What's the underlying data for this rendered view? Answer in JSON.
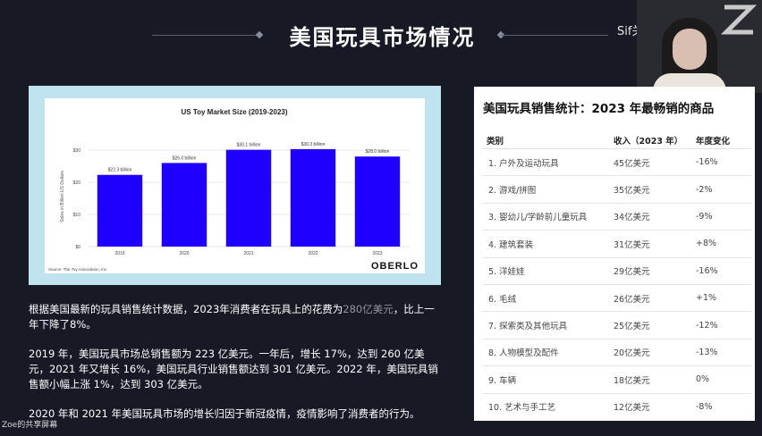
{
  "header": {
    "title": "美国玩具市场情况",
    "overlay_text": "Sif关键词模型"
  },
  "chart_data": {
    "type": "bar",
    "title": "US Toy Market Size (2019-2023)",
    "categories": [
      "2019",
      "2020",
      "2021",
      "2022",
      "2023"
    ],
    "values": [
      22.3,
      26.0,
      30.1,
      30.3,
      28.0
    ],
    "data_labels": [
      "$22.3 billion",
      "$26.0 billion",
      "$30.1 billion",
      "$30.3 billion",
      "$28.0 billion"
    ],
    "ylabel": "Sales in Billion US Dollars",
    "xlabel": "",
    "yticks": [
      "$0",
      "$10",
      "$20",
      "$30"
    ],
    "ylim": [
      0,
      30
    ],
    "bar_color": "#1f00ff",
    "grid": true,
    "source": "Source: The Toy Association, Inc.",
    "brand": "OBERLO"
  },
  "description": {
    "p1_prefix": "根据美国最新的玩具销售统计数据，2023年消费者在玩具上的花费为",
    "p1_highlight": "280亿美元",
    "p1_suffix": "，比上一年下降了8%。",
    "p2": "2019 年，美国玩具市场总销售额为 223 亿美元。一年后，增长 17%，达到 260 亿美元，2021 年又增长 16%，美国玩具行业销售额达到 301 亿美元。2022 年，美国玩具销售额小幅上涨 1%，达到 303 亿美元。",
    "p3": "2020 年和 2021 年美国玩具市场的增长归因于新冠疫情，疫情影响了消费者的行为。"
  },
  "table": {
    "title": "美国玩具销售统计：2023 年最畅销的商品",
    "headers": [
      "类别",
      "收入（2023 年）",
      "年度变化"
    ],
    "rows": [
      [
        "1. 户外及运动玩具",
        "45亿美元",
        "-16%"
      ],
      [
        "2. 游戏/拼图",
        "35亿美元",
        "-2%"
      ],
      [
        "3. 婴幼儿/学龄前儿童玩具",
        "34亿美元",
        "-9%"
      ],
      [
        "4. 建筑套装",
        "31亿美元",
        "+8%"
      ],
      [
        "5. 洋娃娃",
        "29亿美元",
        "-16%"
      ],
      [
        "6. 毛绒",
        "26亿美元",
        "+1%"
      ],
      [
        "7. 探索类及其他玩具",
        "25亿美元",
        "-12%"
      ],
      [
        "8. 人物模型及配件",
        "20亿美元",
        "-13%"
      ],
      [
        "9. 车辆",
        "18亿美元",
        "0%"
      ],
      [
        "10. 艺术与手工艺",
        "12亿美元",
        "-8%"
      ]
    ]
  },
  "footer": {
    "screen_share_label": "Zoe的共享屏幕"
  },
  "colors": {
    "background": "#171a24",
    "chart_frame": "#bfe4ef",
    "bar": "#1f00ff"
  }
}
